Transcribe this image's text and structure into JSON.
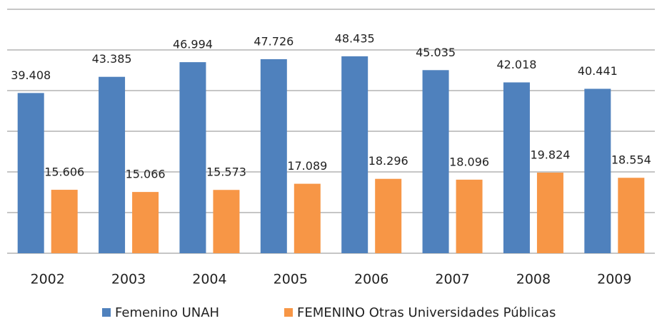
{
  "chart_data": {
    "type": "bar",
    "categories": [
      "2002",
      "2003",
      "2004",
      "2005",
      "2006",
      "2007",
      "2008",
      "2009"
    ],
    "series": [
      {
        "name": "Femenino UNAH",
        "color": "#4f81bd",
        "values": [
          39.408,
          43.385,
          46.994,
          47.726,
          48.435,
          45.035,
          42.018,
          40.441
        ]
      },
      {
        "name": "FEMENINO Otras Universidades Públicas",
        "color": "#f79646",
        "values": [
          15.606,
          15.066,
          15.573,
          17.089,
          18.296,
          18.096,
          19.824,
          18.554
        ]
      }
    ],
    "ylim": [
      0,
      60
    ],
    "yticks": [
      0,
      10,
      20,
      30,
      40,
      50,
      60
    ],
    "grid": true,
    "legend": "bottom"
  }
}
